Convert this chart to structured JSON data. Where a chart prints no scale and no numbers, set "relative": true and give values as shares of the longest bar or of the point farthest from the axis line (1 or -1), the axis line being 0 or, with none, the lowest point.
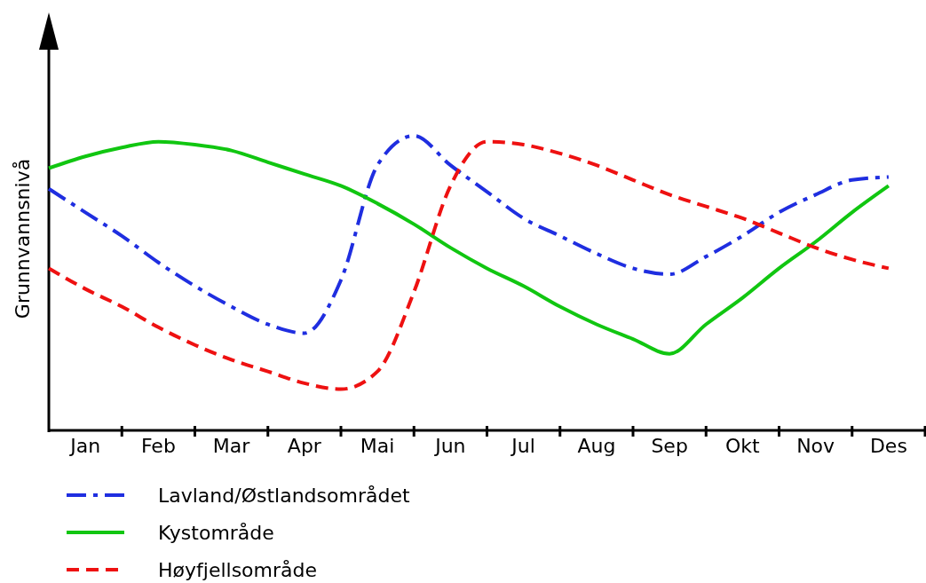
{
  "chart_data": {
    "type": "line",
    "relative": true,
    "ylabel": "Grunnvannsnivå",
    "categories": [
      null,
      "Jan",
      null,
      "Feb",
      null,
      "Mar",
      null,
      "Apr",
      null,
      "Mai",
      null,
      "Jun",
      null,
      "Jul",
      null,
      "Aug",
      null,
      "Sep",
      null,
      "Okt",
      null,
      "Nov",
      null,
      "Des",
      null
    ],
    "legend": "bottom",
    "series": [
      {
        "name": "Lavland/Østlandsområdet",
        "color": "#1f2ee0",
        "line_style": "dashdot",
        "values": [
          0.82,
          0.74,
          0.66,
          0.57,
          0.49,
          0.42,
          0.36,
          0.33,
          0.51,
          0.9,
          1.0,
          0.9,
          0.81,
          0.72,
          0.66,
          0.6,
          0.55,
          0.53,
          0.59,
          0.66,
          0.74,
          0.8,
          0.85,
          0.86,
          null
        ]
      },
      {
        "name": "Kystområde",
        "color": "#11c611",
        "line_style": "solid",
        "values": [
          0.89,
          0.93,
          0.96,
          0.98,
          0.97,
          0.95,
          0.91,
          0.87,
          0.83,
          0.77,
          0.7,
          0.62,
          0.55,
          0.49,
          0.42,
          0.36,
          0.31,
          0.26,
          0.36,
          0.45,
          0.55,
          0.64,
          0.74,
          0.83,
          null
        ]
      },
      {
        "name": "Høyfjellsområde",
        "color": "#ee1111",
        "line_style": "dashed",
        "values": [
          0.55,
          0.48,
          0.42,
          0.35,
          0.29,
          0.24,
          0.2,
          0.16,
          0.14,
          0.2,
          0.47,
          0.83,
          0.98,
          0.97,
          0.94,
          0.9,
          0.85,
          0.8,
          0.76,
          0.72,
          0.67,
          0.62,
          0.58,
          0.55,
          null
        ]
      }
    ]
  }
}
